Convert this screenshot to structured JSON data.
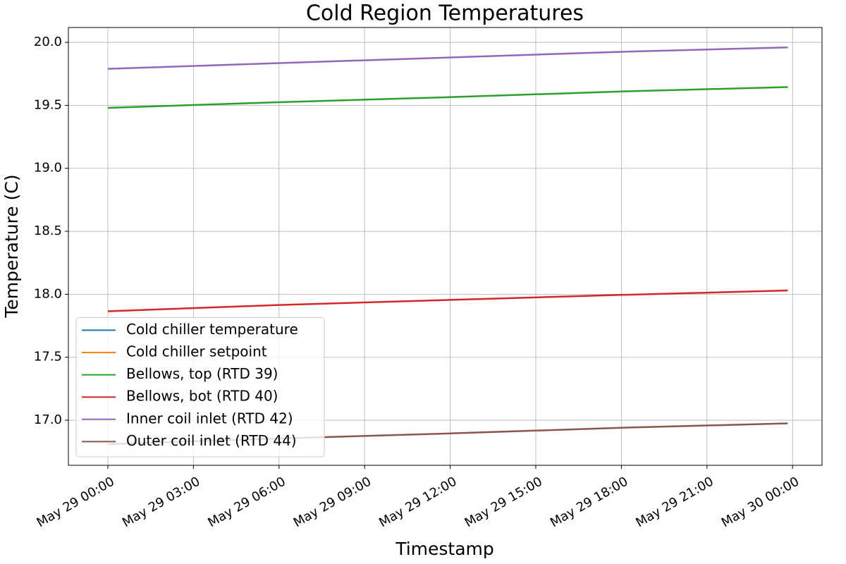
{
  "chart_data": {
    "type": "line",
    "title": "Cold Region Temperatures",
    "xlabel": "Timestamp",
    "ylabel": "Temperature (C)",
    "x": [
      "May 29 00:00",
      "May 29 06:00",
      "May 29 12:00",
      "May 29 18:00",
      "May 29 23:50"
    ],
    "series": [
      {
        "name": "Cold chiller temperature",
        "color": "#1f77b4",
        "values": [
          null,
          null,
          null,
          null,
          null
        ]
      },
      {
        "name": "Cold chiller setpoint",
        "color": "#ff7f0e",
        "values": [
          null,
          null,
          null,
          null,
          null
        ]
      },
      {
        "name": "Bellows, top (RTD 39)",
        "color": "#2ca02c",
        "values": [
          19.48,
          19.525,
          19.565,
          19.61,
          19.645
        ]
      },
      {
        "name": "Bellows, bot (RTD 40)",
        "color": "#d62728",
        "values": [
          17.865,
          17.915,
          17.955,
          17.995,
          18.03
        ]
      },
      {
        "name": "Inner coil inlet (RTD 42)",
        "color": "#9467bd",
        "values": [
          19.79,
          19.835,
          19.88,
          19.925,
          19.96
        ]
      },
      {
        "name": "Outer coil inlet (RTD 44)",
        "color": "#8c564b",
        "values": [
          16.81,
          16.855,
          16.895,
          16.94,
          16.975
        ]
      }
    ],
    "xlim": [
      "May 28 22:37",
      "May 30 01:02"
    ],
    "xticks": [
      "May 29 00:00",
      "May 29 03:00",
      "May 29 06:00",
      "May 29 09:00",
      "May 29 12:00",
      "May 29 15:00",
      "May 29 18:00",
      "May 29 21:00",
      "May 30 00:00"
    ],
    "ylim": [
      16.642,
      20.118
    ],
    "yticks": [
      {
        "value": 17,
        "label": "17.0"
      },
      17.5,
      {
        "value": 18,
        "label": "18.0"
      },
      18.5,
      {
        "value": 19,
        "label": "19.0"
      },
      19.5,
      {
        "value": 20,
        "label": "20.0"
      }
    ],
    "grid": true,
    "legend": "lower left"
  }
}
